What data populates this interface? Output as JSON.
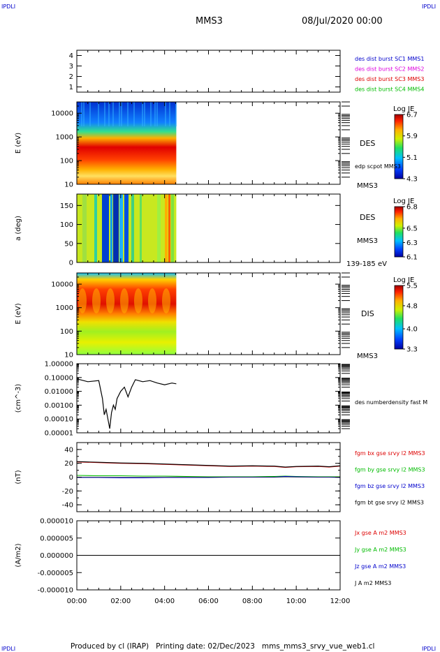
{
  "header": {
    "corner_tl": "IPDLI",
    "corner_tr": "IPDLI",
    "corner_bl": "IPDLI",
    "corner_br": "IPDLI",
    "spacecraft": "MMS3",
    "date": "08/Jul/2020 00:00"
  },
  "footer": {
    "text": "Produced by cl (IRAP)   Printing date: 02/Dec/2023   mms_mms3_srvy_vue_web1.cl"
  },
  "colors": {
    "mms1": "#0000cc",
    "mms2": "#dd00dd",
    "mms3": "#dd0000",
    "mms4": "#00bb00",
    "bx": "#dd0000",
    "by": "#00bb00",
    "bz": "#0000cc",
    "bt": "#000000"
  },
  "chart_data": [
    {
      "type": "line",
      "panel": "availability",
      "yticks": [
        "4",
        "3",
        "2",
        "1"
      ],
      "ylim": [
        0.5,
        4.5
      ],
      "legend": [
        {
          "name": "des dist burst SC1 MMS1",
          "color": "#0000cc"
        },
        {
          "name": "des dist burst SC2 MMS2",
          "color": "#dd00dd"
        },
        {
          "name": "des dist burst SC3 MMS3",
          "color": "#dd0000"
        },
        {
          "name": "des dist burst SC4 MMS4",
          "color": "#00bb00"
        }
      ]
    },
    {
      "type": "heatmap",
      "panel": "des-energy",
      "ylabel": "E (eV)",
      "yscale": "log",
      "ylim": [
        10,
        30000
      ],
      "yticks": [
        "10000",
        "1000",
        "100",
        "10"
      ],
      "x_data_end": "04:32",
      "label": "DES",
      "sublabel": "edp scpot MMS3",
      "spacecraft": "MMS3",
      "colorbar": {
        "title": "Log JE",
        "ticks": [
          "6.7",
          "5.9",
          "5.1",
          "4.3"
        ],
        "range": [
          4.3,
          6.7
        ]
      }
    },
    {
      "type": "heatmap",
      "panel": "des-pitch",
      "ylabel": "a (deg)",
      "ylim": [
        0,
        180
      ],
      "yticks": [
        "150",
        "100",
        "50",
        "0"
      ],
      "x_data_end": "04:32",
      "label": "DES",
      "spacecraft": "MMS3",
      "energy_range": "139-185 eV",
      "colorbar": {
        "title": "Log JE",
        "ticks": [
          "6.8",
          "6.5",
          "6.3",
          "6.1"
        ],
        "range": [
          6.1,
          6.8
        ]
      }
    },
    {
      "type": "heatmap",
      "panel": "dis-energy",
      "ylabel": "E (eV)",
      "yscale": "log",
      "ylim": [
        10,
        30000
      ],
      "yticks": [
        "10000",
        "1000",
        "100",
        "10"
      ],
      "x_data_end": "04:32",
      "label": "DIS",
      "spacecraft": "MMS3",
      "colorbar": {
        "title": "Log JE",
        "ticks": [
          "5.5",
          "4.8",
          "4.0",
          "3.3"
        ],
        "range": [
          3.3,
          5.5
        ]
      }
    },
    {
      "type": "line",
      "panel": "density",
      "ylabel": "(cm^-3)",
      "yscale": "log",
      "ylim": [
        1e-05,
        1.0
      ],
      "yticks": [
        "1.00000",
        "0.10000",
        "0.01000",
        "0.00100",
        "0.00010",
        "0.00001"
      ],
      "legend": [
        {
          "name": "des numberdensity fast M",
          "color": "#000000"
        }
      ],
      "x": [
        "00:00",
        "00:30",
        "01:00",
        "01:10",
        "01:15",
        "01:20",
        "01:25",
        "01:30",
        "01:35",
        "01:40",
        "01:45",
        "01:50",
        "02:00",
        "02:10",
        "02:20",
        "02:30",
        "02:40",
        "03:00",
        "03:20",
        "03:40",
        "04:00",
        "04:20",
        "04:32"
      ],
      "values": [
        0.08,
        0.05,
        0.06,
        0.003,
        0.0002,
        0.0005,
        0.0001,
        2e-05,
        0.0003,
        0.001,
        0.0005,
        0.003,
        0.01,
        0.02,
        0.004,
        0.02,
        0.07,
        0.05,
        0.06,
        0.04,
        0.03,
        0.04,
        0.035
      ]
    },
    {
      "type": "line",
      "panel": "magnetic-field",
      "ylabel": "(nT)",
      "ylim": [
        -50,
        50
      ],
      "yticks": [
        "40",
        "20",
        "0",
        "-20",
        "-40"
      ],
      "x": [
        "00:00",
        "01:00",
        "02:00",
        "03:00",
        "04:00",
        "05:00",
        "06:00",
        "07:00",
        "08:00",
        "09:00",
        "09:30",
        "10:00",
        "11:00",
        "11:30",
        "12:00"
      ],
      "series": [
        {
          "name": "fgm bx gse srvy l2 MMS3",
          "color": "#dd0000",
          "values": [
            22,
            21,
            20,
            19.5,
            18.5,
            17.5,
            16.5,
            15.5,
            16,
            15.5,
            14,
            15,
            15.5,
            14.5,
            16
          ]
        },
        {
          "name": "fgm by gse srvy l2 MMS3",
          "color": "#00bb00",
          "values": [
            2.5,
            2,
            2,
            1.5,
            1.5,
            1,
            0.5,
            0.5,
            0.5,
            1,
            1.5,
            1,
            0.5,
            0.5,
            0.5
          ]
        },
        {
          "name": "fgm bz gse srvy l2 MMS3",
          "color": "#0000cc",
          "values": [
            -0.5,
            -0.5,
            -1,
            -1,
            -0.5,
            -0.5,
            -0.5,
            0,
            0,
            0,
            1,
            0.5,
            0,
            0,
            -0.5
          ]
        },
        {
          "name": "fgm bt gse srvy l2 MMS3",
          "color": "#000000",
          "values": [
            22.5,
            21.5,
            20.5,
            20,
            19,
            18,
            17,
            16,
            16.5,
            16,
            14.5,
            15.5,
            16,
            15,
            16.5
          ]
        }
      ]
    },
    {
      "type": "line",
      "panel": "current-density",
      "ylabel": "(A/m2)",
      "ylim": [
        -1e-05,
        1e-05
      ],
      "yticks": [
        "0.000010",
        "0.000005",
        "0.000000",
        "-0.000005",
        "-0.000010"
      ],
      "legend": [
        {
          "name": "Jx gse A m2 MMS3",
          "color": "#dd0000"
        },
        {
          "name": "Jy gse A m2 MMS3",
          "color": "#00bb00"
        },
        {
          "name": "Jz gse A m2 MMS3",
          "color": "#0000cc"
        },
        {
          "name": "J A m2 MMS3",
          "color": "#000000"
        }
      ],
      "x": [
        "00:00",
        "12:00"
      ],
      "values": [
        0,
        0
      ]
    }
  ],
  "xaxis": {
    "ticks": [
      "00:00",
      "02:00",
      "04:00",
      "06:00",
      "08:00",
      "10:00",
      "12:00"
    ],
    "range_hours": [
      0,
      12
    ]
  }
}
